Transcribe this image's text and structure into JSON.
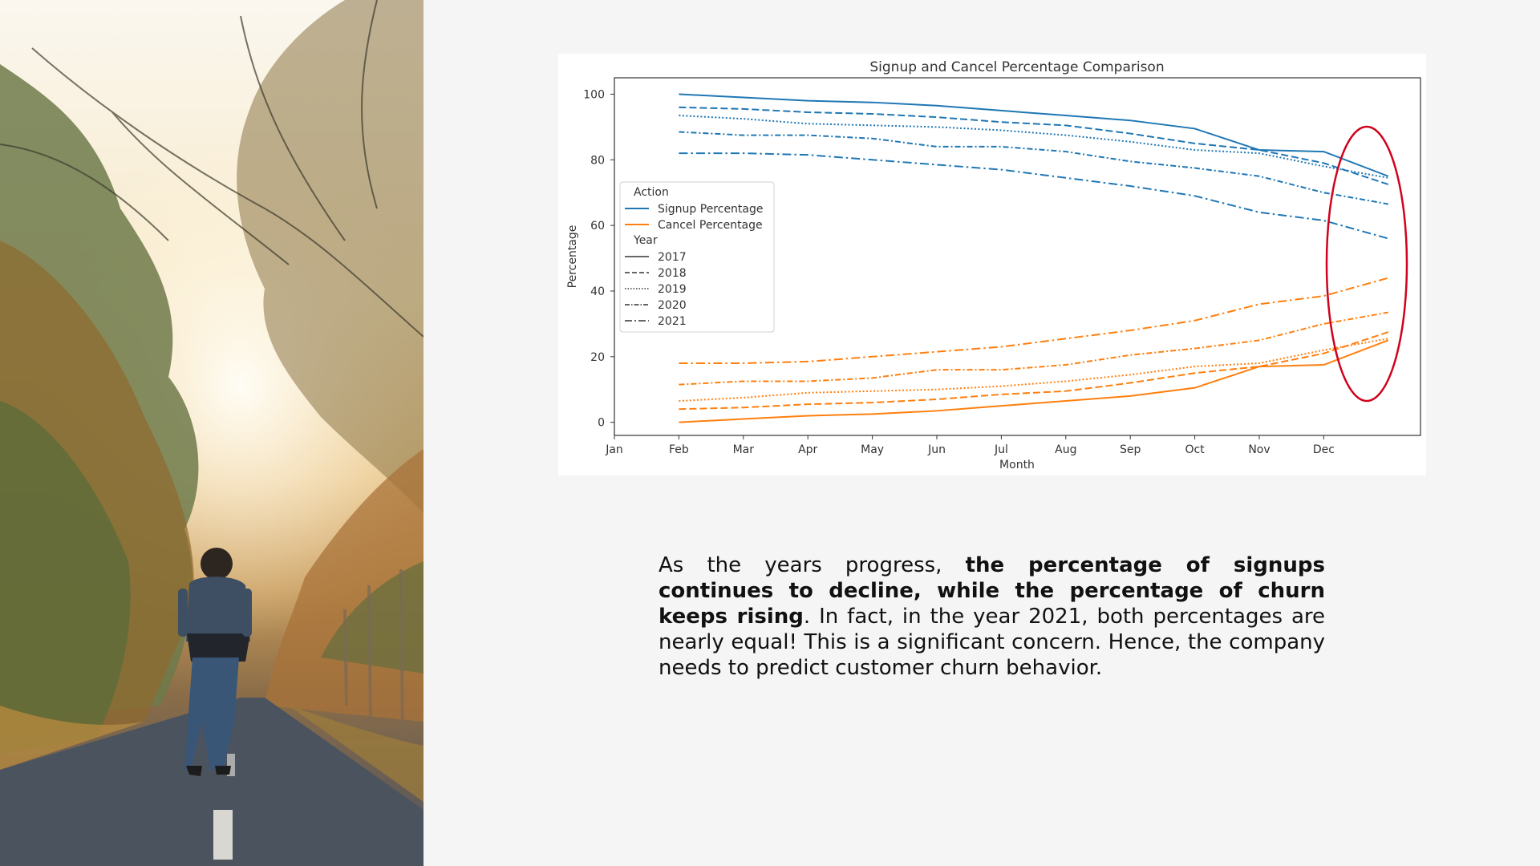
{
  "caption": {
    "part1": "As the years progress, ",
    "bold": "the percentage of signups continues to decline, while the percentage of churn keeps rising",
    "part2": ". In fact, in the year 2021, both percentages are nearly equal! This is a significant concern. Hence, the company needs to predict customer churn behavior."
  },
  "photo": {
    "subject": "person walking on a tree-lined road at sunrise"
  },
  "highlight": {
    "shape": "ellipse",
    "color": "#d0021b",
    "target": "last-month-values"
  },
  "colors": {
    "signup": "#1f77b4",
    "cancel": "#ff7f0e",
    "background": "#f6f5f5"
  },
  "chart_data": {
    "type": "line",
    "title": "Signup and Cancel Percentage Comparison",
    "xlabel": "Month",
    "ylabel": "Percentage",
    "categories": [
      "Jan",
      "Feb",
      "Mar",
      "Apr",
      "May",
      "Jun",
      "Jul",
      "Aug",
      "Sep",
      "Oct",
      "Nov",
      "Dec"
    ],
    "ylim": [
      -4,
      105
    ],
    "yticks": [
      0,
      20,
      40,
      60,
      80,
      100
    ],
    "grid": false,
    "legend": {
      "placement": "center-left",
      "action_title": "Action",
      "year_title": "Year",
      "actions": [
        "Signup Percentage",
        "Cancel Percentage"
      ],
      "years": [
        "2017",
        "2018",
        "2019",
        "2020",
        "2021"
      ]
    },
    "series": [
      {
        "action": "Signup Percentage",
        "year": "2017",
        "values": [
          100,
          99,
          98,
          97.5,
          96.5,
          95,
          93.5,
          92,
          89.5,
          83,
          82.5,
          75
        ]
      },
      {
        "action": "Signup Percentage",
        "year": "2018",
        "values": [
          96,
          95.5,
          94.5,
          94,
          93,
          91.5,
          90.5,
          88,
          85,
          83,
          79,
          72.5
        ]
      },
      {
        "action": "Signup Percentage",
        "year": "2019",
        "values": [
          93.5,
          92.5,
          91,
          90.5,
          90,
          89,
          87.5,
          85.5,
          83,
          82,
          78,
          74.5
        ]
      },
      {
        "action": "Signup Percentage",
        "year": "2020",
        "values": [
          88.5,
          87.5,
          87.5,
          86.5,
          84,
          84,
          82.5,
          79.5,
          77.5,
          75,
          70,
          66.5
        ]
      },
      {
        "action": "Signup Percentage",
        "year": "2021",
        "values": [
          82,
          82,
          81.5,
          80,
          78.5,
          77,
          74.5,
          72,
          69,
          64,
          61.5,
          56
        ]
      },
      {
        "action": "Cancel Percentage",
        "year": "2017",
        "values": [
          0,
          1,
          2,
          2.5,
          3.5,
          5,
          6.5,
          8,
          10.5,
          17,
          17.5,
          25
        ]
      },
      {
        "action": "Cancel Percentage",
        "year": "2018",
        "values": [
          4,
          4.5,
          5.5,
          6,
          7,
          8.5,
          9.5,
          12,
          15,
          17,
          21,
          27.5
        ]
      },
      {
        "action": "Cancel Percentage",
        "year": "2019",
        "values": [
          6.5,
          7.5,
          9,
          9.5,
          10,
          11,
          12.5,
          14.5,
          17,
          18,
          22,
          25.5
        ]
      },
      {
        "action": "Cancel Percentage",
        "year": "2020",
        "values": [
          11.5,
          12.5,
          12.5,
          13.5,
          16,
          16,
          17.5,
          20.5,
          22.5,
          25,
          30,
          33.5
        ]
      },
      {
        "action": "Cancel Percentage",
        "year": "2021",
        "values": [
          18,
          18,
          18.5,
          20,
          21.5,
          23,
          25.5,
          28,
          31,
          36,
          38.5,
          44
        ]
      }
    ]
  }
}
